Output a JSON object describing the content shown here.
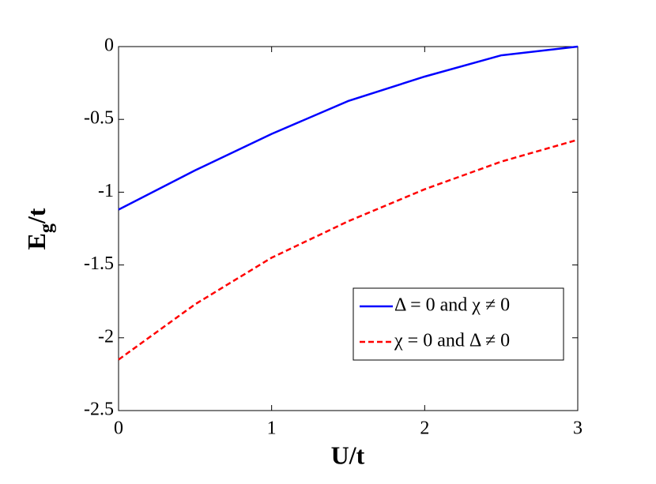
{
  "chart_data": {
    "type": "line",
    "xlabel": "U/t",
    "ylabel": [
      "E",
      "g",
      "/t"
    ],
    "x": [
      0,
      0.5,
      1,
      1.5,
      2,
      2.5,
      3
    ],
    "series": [
      {
        "name": "Δ = 0 and χ ≠ 0",
        "color": "#0000ff",
        "dash": "solid",
        "values": [
          -1.12,
          -0.85,
          -0.6,
          -0.374,
          -0.206,
          -0.06,
          0
        ]
      },
      {
        "name": "χ = 0 and Δ ≠ 0",
        "color": "#ff0000",
        "dash": "dashed",
        "values": [
          -2.15,
          -1.77,
          -1.45,
          -1.2,
          -0.98,
          -0.79,
          -0.64
        ]
      }
    ],
    "xlim": [
      0,
      3
    ],
    "xticks": [
      0,
      1,
      2,
      3
    ],
    "ylim": [
      -2.5,
      0
    ],
    "yticks": [
      -2.5,
      -2,
      -1.5,
      -1,
      -0.5,
      0
    ],
    "legend": "lower-right",
    "grid": false
  }
}
